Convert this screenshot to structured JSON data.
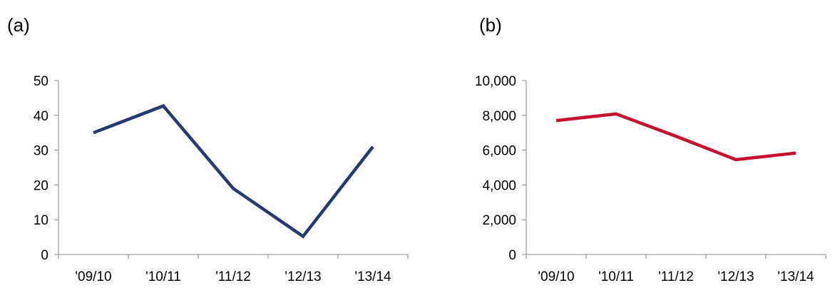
{
  "chart_data": [
    {
      "type": "line",
      "panel_label": "(a)",
      "categories": [
        "'09/10",
        "'10/11",
        "'11/12",
        "'12/13",
        "'13/14"
      ],
      "series": [
        {
          "values": [
            35,
            42.7,
            19,
            5.2,
            31
          ],
          "color": "#233a73"
        }
      ],
      "ylim": [
        0,
        50
      ],
      "yticks": [
        "0",
        "10",
        "20",
        "30",
        "40",
        "50"
      ],
      "grid": false,
      "legend": false
    },
    {
      "type": "line",
      "panel_label": "(b)",
      "categories": [
        "'09/10",
        "'10/11",
        "'11/12",
        "'12/13",
        "'13/14"
      ],
      "series": [
        {
          "values": [
            7700,
            8080,
            6800,
            5450,
            5830
          ],
          "color": "#c8102e"
        }
      ],
      "ylim": [
        0,
        10000
      ],
      "yticks": [
        "0",
        "2,000",
        "4,000",
        "6,000",
        "8,000",
        "10,000"
      ],
      "grid": false,
      "legend": false
    }
  ]
}
